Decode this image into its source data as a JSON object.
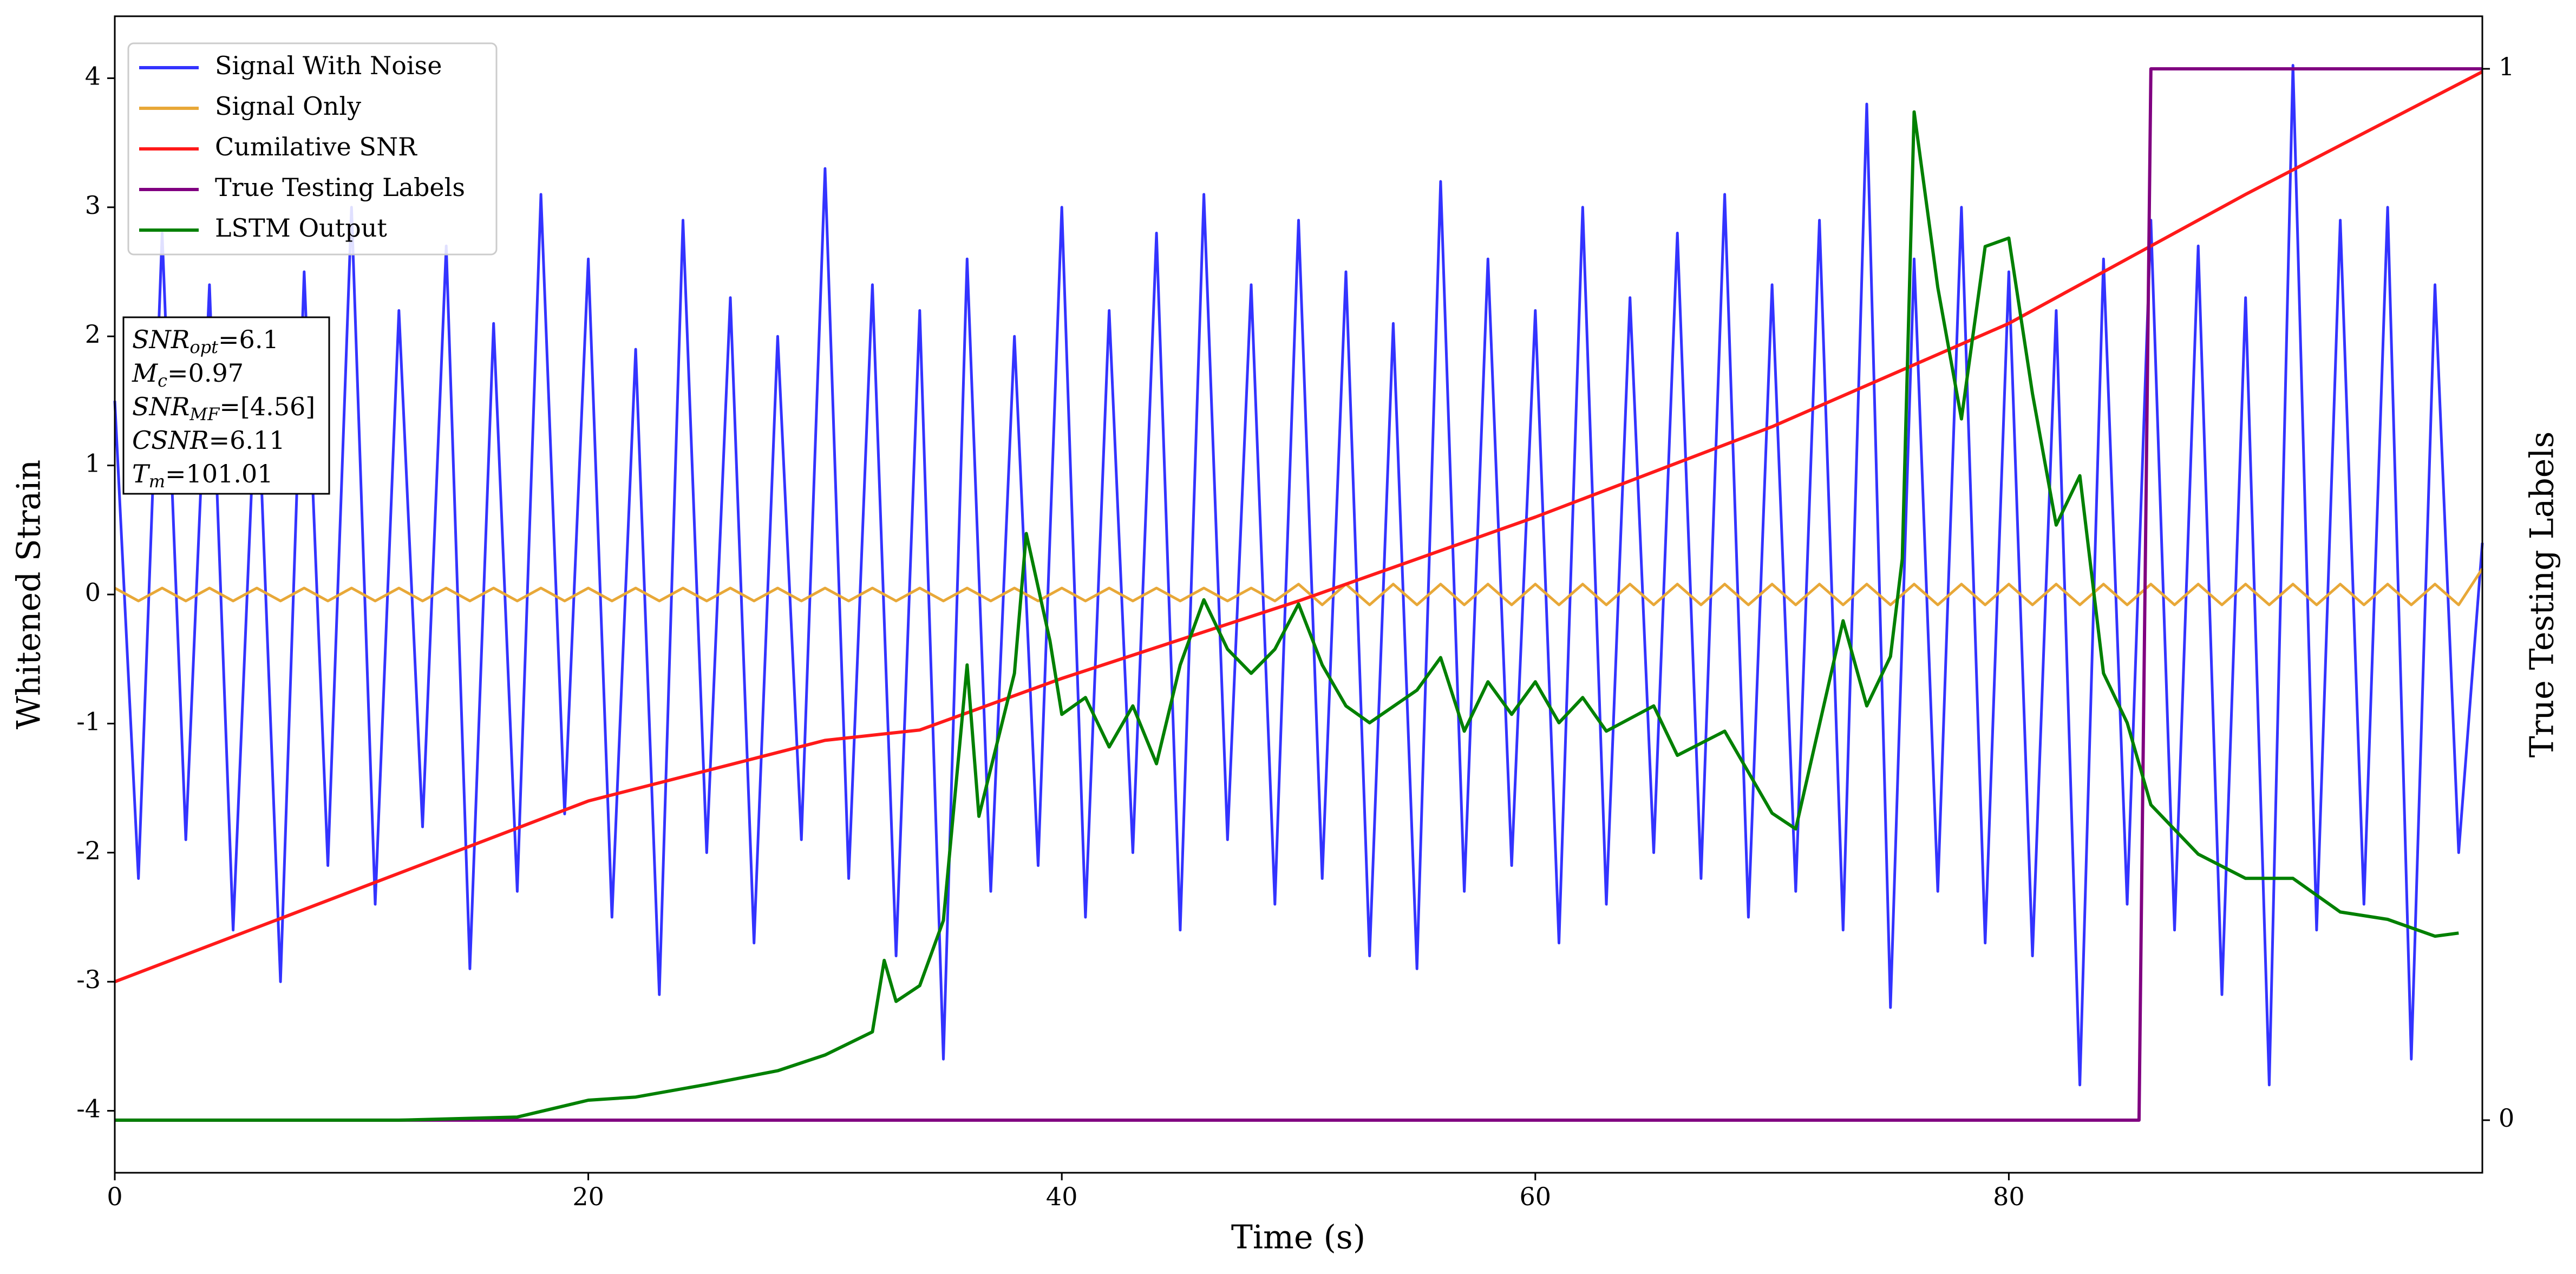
{
  "chart_data": {
    "type": "line",
    "xlabel": "Time (s)",
    "ylabel": "Whitened Strain",
    "y2label": "True Testing Labels",
    "xlim": [
      0,
      100
    ],
    "ylim": [
      -4.48,
      4.48
    ],
    "y2lim": [
      -0.05,
      1.05
    ],
    "xticks": [
      0,
      20,
      40,
      60,
      80
    ],
    "yticks": [
      -4,
      -3,
      -2,
      -1,
      0,
      1,
      2,
      3,
      4
    ],
    "y2ticks": [
      0,
      1
    ],
    "legend": "upper left",
    "annotation": [
      {
        "main": "SNR",
        "sub": "opt",
        "rest": "=6.1"
      },
      {
        "main": "M",
        "sub": "c",
        "rest": "=0.97"
      },
      {
        "main": "SNR",
        "sub": "MF",
        "rest": "=[4.56]"
      },
      {
        "main": "CSNR",
        "rest": "=6.11"
      },
      {
        "main": "T",
        "sub": "m",
        "rest": "=101.01"
      }
    ],
    "x": [
      0,
      1,
      2,
      3,
      4,
      5,
      6,
      7,
      8,
      9,
      10,
      11,
      12,
      13,
      14,
      15,
      16,
      17,
      18,
      19,
      20,
      21,
      22,
      23,
      24,
      25,
      26,
      27,
      28,
      29,
      30,
      31,
      32,
      33,
      34,
      35,
      36,
      37,
      38,
      39,
      40,
      41,
      42,
      43,
      44,
      45,
      46,
      47,
      48,
      49,
      50,
      51,
      52,
      53,
      54,
      55,
      56,
      57,
      58,
      59,
      60,
      61,
      62,
      63,
      64,
      65,
      66,
      67,
      68,
      69,
      70,
      71,
      72,
      73,
      74,
      75,
      76,
      77,
      78,
      79,
      80,
      81,
      82,
      83,
      84,
      85,
      86,
      87,
      88,
      89,
      90,
      91,
      92,
      93,
      94,
      95,
      96,
      97,
      98,
      99,
      100
    ],
    "series": [
      {
        "name": "Signal With Noise",
        "color": "#3333ff",
        "values": [
          1.5,
          -2.2,
          2.8,
          -1.9,
          2.4,
          -2.6,
          1.8,
          -3.0,
          2.5,
          -2.1,
          3.0,
          -2.4,
          2.2,
          -1.8,
          2.7,
          -2.9,
          2.1,
          -2.3,
          3.1,
          -1.7,
          2.6,
          -2.5,
          1.9,
          -3.1,
          2.9,
          -2.0,
          2.3,
          -2.7,
          2.0,
          -1.9,
          3.3,
          -2.2,
          2.4,
          -2.8,
          2.2,
          -3.6,
          2.6,
          -2.3,
          2.0,
          -2.1,
          3.0,
          -2.5,
          2.2,
          -2.0,
          2.8,
          -2.6,
          3.1,
          -1.9,
          2.4,
          -2.4,
          2.9,
          -2.2,
          2.5,
          -2.8,
          2.1,
          -2.9,
          3.2,
          -2.3,
          2.6,
          -2.1,
          2.2,
          -2.7,
          3.0,
          -2.4,
          2.3,
          -2.0,
          2.8,
          -2.2,
          3.1,
          -2.5,
          2.4,
          -2.3,
          2.9,
          -2.6,
          3.8,
          -3.2,
          2.6,
          -2.3,
          3.0,
          -2.7,
          2.5,
          -2.8,
          2.2,
          -3.8,
          2.6,
          -2.4,
          2.9,
          -2.6,
          2.7,
          -3.1,
          2.3,
          -3.8,
          4.1,
          -2.6,
          2.9,
          -2.4,
          3.0,
          -3.6,
          2.4,
          -2.0,
          0.4
        ]
      },
      {
        "name": "Signal Only",
        "color": "#e8a838",
        "values": [
          0.05,
          -0.05,
          0.05,
          -0.05,
          0.05,
          -0.05,
          0.05,
          -0.05,
          0.05,
          -0.05,
          0.05,
          -0.05,
          0.05,
          -0.05,
          0.05,
          -0.05,
          0.05,
          -0.05,
          0.05,
          -0.05,
          0.05,
          -0.05,
          0.05,
          -0.05,
          0.05,
          -0.05,
          0.05,
          -0.05,
          0.05,
          -0.05,
          0.05,
          -0.05,
          0.05,
          -0.05,
          0.05,
          -0.05,
          0.05,
          -0.05,
          0.05,
          -0.05,
          0.05,
          -0.05,
          0.05,
          -0.05,
          0.05,
          -0.05,
          0.05,
          -0.05,
          0.05,
          -0.05,
          0.08,
          -0.08,
          0.08,
          -0.08,
          0.08,
          -0.08,
          0.08,
          -0.08,
          0.08,
          -0.08,
          0.08,
          -0.08,
          0.08,
          -0.08,
          0.08,
          -0.08,
          0.08,
          -0.08,
          0.08,
          -0.08,
          0.08,
          -0.08,
          0.08,
          -0.08,
          0.08,
          -0.08,
          0.08,
          -0.08,
          0.08,
          -0.08,
          0.08,
          -0.08,
          0.08,
          -0.08,
          0.08,
          -0.08,
          0.08,
          -0.08,
          0.08,
          -0.08,
          0.08,
          -0.08,
          0.08,
          -0.08,
          0.08,
          -0.08,
          0.08,
          -0.08,
          0.08,
          -0.08,
          0.2
        ]
      },
      {
        "name": "Cumilative SNR",
        "color": "#ff1a1a",
        "x": [
          0,
          10,
          20,
          30,
          34,
          40,
          50,
          60,
          70,
          80,
          90,
          100
        ],
        "values": [
          -3,
          -2.3,
          -1.6,
          -1.13,
          -1.05,
          -0.65,
          -0.05,
          0.6,
          1.3,
          2.1,
          3.1,
          4.05
        ]
      },
      {
        "name": "True Testing Labels",
        "color": "#800080",
        "axis": "y2",
        "x": [
          0,
          85.5,
          86,
          100
        ],
        "values": [
          0,
          0,
          1,
          1
        ]
      },
      {
        "name": "LSTM Output",
        "color": "#008000",
        "axis": "y2",
        "x": [
          0,
          12,
          17,
          20,
          22,
          25,
          28,
          30,
          32,
          32.5,
          33,
          34,
          35,
          36,
          36.5,
          38,
          38.5,
          39.5,
          40,
          41,
          42,
          43,
          44,
          45,
          46,
          47,
          48,
          49,
          50,
          51,
          52,
          53,
          55,
          56,
          57,
          58,
          59,
          60,
          61,
          62,
          63,
          65,
          66,
          68,
          70,
          71,
          73,
          74,
          75,
          75.5,
          76,
          77,
          78,
          79,
          80,
          81,
          82,
          83,
          84,
          85,
          86,
          88,
          90,
          92,
          94,
          96,
          98,
          99
        ],
        "values": [
          0,
          0,
          0.003,
          0.019,
          0.022,
          0.034,
          0.047,
          0.062,
          0.084,
          0.152,
          0.113,
          0.128,
          0.19,
          0.433,
          0.289,
          0.425,
          0.558,
          0.456,
          0.386,
          0.402,
          0.355,
          0.394,
          0.339,
          0.433,
          0.495,
          0.448,
          0.425,
          0.448,
          0.491,
          0.433,
          0.394,
          0.378,
          0.409,
          0.44,
          0.37,
          0.417,
          0.386,
          0.417,
          0.378,
          0.402,
          0.37,
          0.394,
          0.347,
          0.37,
          0.292,
          0.277,
          0.475,
          0.394,
          0.441,
          0.534,
          0.959,
          0.792,
          0.667,
          0.831,
          0.839,
          0.691,
          0.566,
          0.613,
          0.425,
          0.378,
          0.3,
          0.253,
          0.23,
          0.23,
          0.198,
          0.191,
          0.175,
          0.178
        ]
      }
    ]
  }
}
